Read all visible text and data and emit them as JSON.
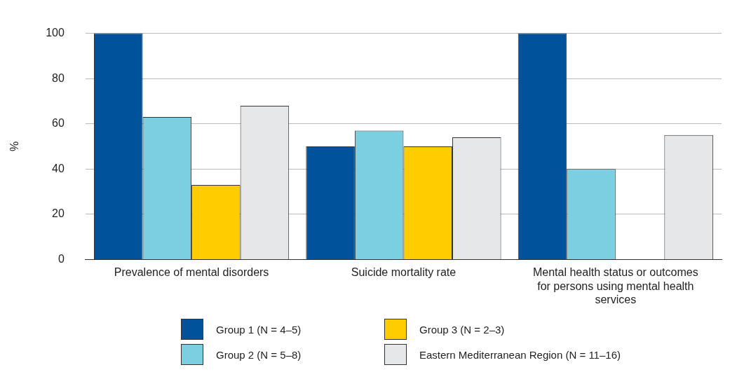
{
  "chart_data": {
    "type": "bar",
    "ylabel": "%",
    "categories": [
      "Prevalence of mental disorders",
      "Suicide mortality rate",
      "Mental health status or outcomes for persons using mental health services"
    ],
    "series": [
      {
        "name": "Group 1 (N = 4–5)",
        "color": "#00529b",
        "values": [
          100,
          50,
          100
        ]
      },
      {
        "name": "Group 2 (N = 5–8)",
        "color": "#7bcfe0",
        "values": [
          63,
          57,
          40
        ]
      },
      {
        "name": "Group 3 (N = 2–3)",
        "color": "#ffcc00",
        "values": [
          33,
          50,
          0
        ]
      },
      {
        "name": "Eastern Mediterranean Region (N = 11–16)",
        "color": "#e6e7e8",
        "values": [
          68,
          54,
          55
        ]
      }
    ],
    "ylim": [
      0,
      100
    ],
    "yticks": [
      0,
      20,
      40,
      60,
      80,
      100
    ],
    "grid": "y",
    "legend": "bottom"
  }
}
